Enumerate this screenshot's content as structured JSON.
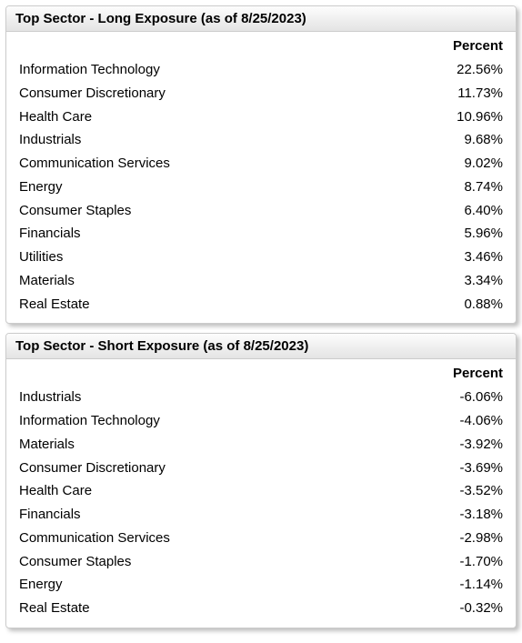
{
  "long_panel": {
    "title": "Top Sector - Long Exposure (as of 8/25/2023)",
    "column_header": "Percent",
    "rows": [
      {
        "label": "Information Technology",
        "percent": "22.56%"
      },
      {
        "label": "Consumer Discretionary",
        "percent": "11.73%"
      },
      {
        "label": "Health Care",
        "percent": "10.96%"
      },
      {
        "label": "Industrials",
        "percent": "9.68%"
      },
      {
        "label": "Communication Services",
        "percent": "9.02%"
      },
      {
        "label": "Energy",
        "percent": "8.74%"
      },
      {
        "label": "Consumer Staples",
        "percent": "6.40%"
      },
      {
        "label": "Financials",
        "percent": "5.96%"
      },
      {
        "label": "Utilities",
        "percent": "3.46%"
      },
      {
        "label": "Materials",
        "percent": "3.34%"
      },
      {
        "label": "Real Estate",
        "percent": "0.88%"
      }
    ]
  },
  "short_panel": {
    "title": "Top Sector - Short Exposure (as of 8/25/2023)",
    "column_header": "Percent",
    "rows": [
      {
        "label": "Industrials",
        "percent": "-6.06%"
      },
      {
        "label": "Information Technology",
        "percent": "-4.06%"
      },
      {
        "label": "Materials",
        "percent": "-3.92%"
      },
      {
        "label": "Consumer Discretionary",
        "percent": "-3.69%"
      },
      {
        "label": "Health Care",
        "percent": "-3.52%"
      },
      {
        "label": "Financials",
        "percent": "-3.18%"
      },
      {
        "label": "Communication Services",
        "percent": "-2.98%"
      },
      {
        "label": "Consumer Staples",
        "percent": "-1.70%"
      },
      {
        "label": "Energy",
        "percent": "-1.14%"
      },
      {
        "label": "Real Estate",
        "percent": "-0.32%"
      }
    ]
  },
  "styling": {
    "background_color": "#ffffff",
    "panel_border_color": "#cccccc",
    "header_gradient_top": "#fdfdfd",
    "header_gradient_bottom": "#e4e4e4",
    "text_color": "#000000",
    "shadow_color": "rgba(0,0,0,0.25)",
    "font_family": "Arial",
    "title_fontsize": 15,
    "title_fontweight": "bold",
    "header_fontsize": 15,
    "header_fontweight": "bold",
    "cell_fontsize": 15,
    "cell_fontweight": "normal"
  }
}
